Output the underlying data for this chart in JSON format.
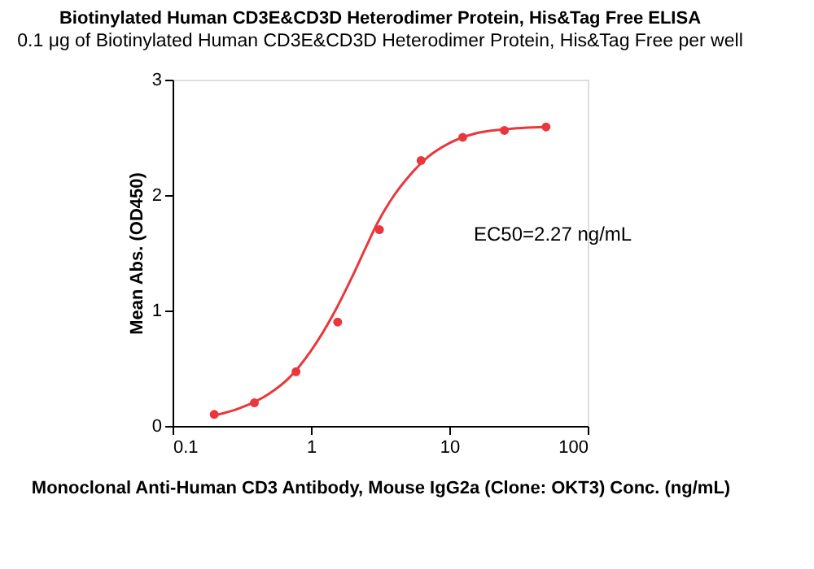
{
  "chart_data": {
    "type": "scatter",
    "title": "Biotinylated Human CD3E&CD3D Heterodimer Protein, His&Tag Free ELISA",
    "subtitle": "0.1 μg of Biotinylated Human CD3E&CD3D Heterodimer Protein, His&Tag Free per well",
    "xlabel": "Monoclonal Anti-Human CD3 Antibody, Mouse IgG2a (Clone: OKT3) Conc. (ng/mL)",
    "ylabel": "Mean Abs. (OD450)",
    "log": "x",
    "xlim": [
      0.1,
      100
    ],
    "xticks": [
      0.1,
      1,
      10,
      100
    ],
    "ylim": [
      0,
      3
    ],
    "yticks": [
      0,
      1,
      2,
      3
    ],
    "grid": false,
    "series": [
      {
        "marker": "circle",
        "color": "#e8383d",
        "x": [
          0.2,
          0.39,
          0.78,
          1.56,
          3.125,
          6.25,
          12.5,
          25,
          50
        ],
        "values": [
          0.1,
          0.2,
          0.47,
          0.9,
          1.7,
          2.3,
          2.5,
          2.56,
          2.59
        ]
      },
      {
        "type": "line",
        "color": "#e8383d",
        "x": [
          0.2,
          0.3,
          0.5,
          0.7,
          1,
          1.5,
          2,
          2.5,
          3,
          4,
          5,
          7,
          10,
          15,
          25,
          50
        ],
        "values": [
          0.09,
          0.15,
          0.28,
          0.42,
          0.65,
          1.0,
          1.3,
          1.55,
          1.75,
          2.0,
          2.15,
          2.33,
          2.45,
          2.53,
          2.57,
          2.59
        ]
      }
    ],
    "annotations": [
      "EC50=2.27 ng/mL"
    ]
  }
}
